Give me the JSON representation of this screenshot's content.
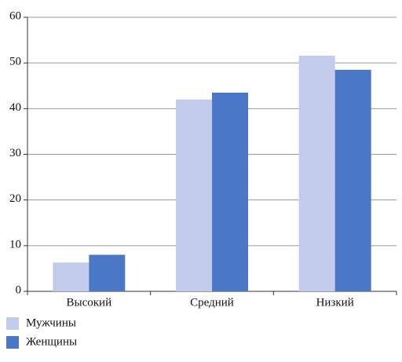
{
  "chart_data": {
    "type": "bar",
    "categories": [
      "Высокий",
      "Средний",
      "Низкий"
    ],
    "series": [
      {
        "name": "Мужчины",
        "color": "#c3cbea",
        "values": [
          6.3,
          42,
          51.6
        ]
      },
      {
        "name": "Женщины",
        "color": "#4a78c6",
        "values": [
          8,
          43.5,
          48.5
        ]
      }
    ],
    "ylim": [
      0,
      60
    ],
    "yticks": [
      0,
      10,
      20,
      30,
      40,
      50,
      60
    ],
    "grid": true,
    "legend": "bottom-left"
  }
}
